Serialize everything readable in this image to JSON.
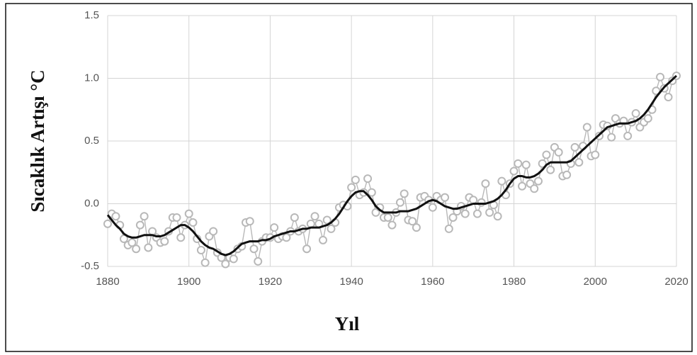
{
  "chart_data": {
    "type": "line",
    "xlabel": "Yıl",
    "ylabel": "Sıcaklık Artışı °C",
    "x": [
      1880,
      1881,
      1882,
      1883,
      1884,
      1885,
      1886,
      1887,
      1888,
      1889,
      1890,
      1891,
      1892,
      1893,
      1894,
      1895,
      1896,
      1897,
      1898,
      1899,
      1900,
      1901,
      1902,
      1903,
      1904,
      1905,
      1906,
      1907,
      1908,
      1909,
      1910,
      1911,
      1912,
      1913,
      1914,
      1915,
      1916,
      1917,
      1918,
      1919,
      1920,
      1921,
      1922,
      1923,
      1924,
      1925,
      1926,
      1927,
      1928,
      1929,
      1930,
      1931,
      1932,
      1933,
      1934,
      1935,
      1936,
      1937,
      1938,
      1939,
      1940,
      1941,
      1942,
      1943,
      1944,
      1945,
      1946,
      1947,
      1948,
      1949,
      1950,
      1951,
      1952,
      1953,
      1954,
      1955,
      1956,
      1957,
      1958,
      1959,
      1960,
      1961,
      1962,
      1963,
      1964,
      1965,
      1966,
      1967,
      1968,
      1969,
      1970,
      1971,
      1972,
      1973,
      1974,
      1975,
      1976,
      1977,
      1978,
      1979,
      1980,
      1981,
      1982,
      1983,
      1984,
      1985,
      1986,
      1987,
      1988,
      1989,
      1990,
      1991,
      1992,
      1993,
      1994,
      1995,
      1996,
      1997,
      1998,
      1999,
      2000,
      2001,
      2002,
      2003,
      2004,
      2005,
      2006,
      2007,
      2008,
      2009,
      2010,
      2011,
      2012,
      2013,
      2014,
      2015,
      2016,
      2017,
      2018,
      2019,
      2020
    ],
    "series": [
      {
        "color": "#b8b8b8",
        "marker": "circle",
        "values": [
          -0.16,
          -0.08,
          -0.1,
          -0.17,
          -0.28,
          -0.33,
          -0.31,
          -0.36,
          -0.17,
          -0.1,
          -0.35,
          -0.22,
          -0.27,
          -0.31,
          -0.3,
          -0.22,
          -0.11,
          -0.11,
          -0.27,
          -0.17,
          -0.08,
          -0.15,
          -0.28,
          -0.37,
          -0.47,
          -0.26,
          -0.22,
          -0.39,
          -0.43,
          -0.48,
          -0.43,
          -0.44,
          -0.36,
          -0.34,
          -0.15,
          -0.14,
          -0.36,
          -0.46,
          -0.3,
          -0.27,
          -0.27,
          -0.19,
          -0.28,
          -0.26,
          -0.27,
          -0.22,
          -0.11,
          -0.22,
          -0.2,
          -0.36,
          -0.16,
          -0.1,
          -0.16,
          -0.29,
          -0.13,
          -0.2,
          -0.15,
          -0.03,
          -0.01,
          -0.02,
          0.13,
          0.19,
          0.07,
          0.09,
          0.2,
          0.09,
          -0.07,
          -0.03,
          -0.11,
          -0.11,
          -0.17,
          -0.07,
          0.01,
          0.08,
          -0.13,
          -0.14,
          -0.19,
          0.05,
          0.06,
          0.03,
          -0.03,
          0.06,
          0.03,
          0.05,
          -0.2,
          -0.11,
          -0.06,
          -0.02,
          -0.08,
          0.05,
          0.03,
          -0.08,
          0.01,
          0.16,
          -0.07,
          -0.01,
          -0.1,
          0.18,
          0.07,
          0.16,
          0.26,
          0.32,
          0.14,
          0.31,
          0.16,
          0.12,
          0.18,
          0.32,
          0.39,
          0.27,
          0.45,
          0.41,
          0.22,
          0.23,
          0.32,
          0.45,
          0.33,
          0.46,
          0.61,
          0.38,
          0.39,
          0.54,
          0.63,
          0.62,
          0.53,
          0.68,
          0.64,
          0.66,
          0.54,
          0.65,
          0.72,
          0.61,
          0.65,
          0.68,
          0.75,
          0.9,
          1.01,
          0.92,
          0.85,
          0.98,
          1.02
        ]
      },
      {
        "color": "#111111",
        "marker": "none",
        "values": [
          -0.09,
          -0.13,
          -0.17,
          -0.2,
          -0.24,
          -0.26,
          -0.27,
          -0.27,
          -0.26,
          -0.25,
          -0.25,
          -0.25,
          -0.26,
          -0.26,
          -0.25,
          -0.23,
          -0.21,
          -0.19,
          -0.17,
          -0.17,
          -0.19,
          -0.22,
          -0.26,
          -0.3,
          -0.33,
          -0.35,
          -0.36,
          -0.38,
          -0.4,
          -0.41,
          -0.4,
          -0.38,
          -0.35,
          -0.32,
          -0.31,
          -0.3,
          -0.3,
          -0.3,
          -0.29,
          -0.29,
          -0.28,
          -0.26,
          -0.25,
          -0.24,
          -0.23,
          -0.22,
          -0.22,
          -0.21,
          -0.2,
          -0.2,
          -0.19,
          -0.19,
          -0.19,
          -0.18,
          -0.17,
          -0.15,
          -0.12,
          -0.08,
          -0.03,
          0.02,
          0.06,
          0.09,
          0.1,
          0.1,
          0.07,
          0.03,
          -0.02,
          -0.05,
          -0.07,
          -0.07,
          -0.07,
          -0.07,
          -0.06,
          -0.06,
          -0.06,
          -0.05,
          -0.04,
          -0.02,
          0.0,
          0.02,
          0.03,
          0.02,
          0.0,
          -0.02,
          -0.03,
          -0.04,
          -0.04,
          -0.03,
          -0.02,
          -0.01,
          0.0,
          0.0,
          0.0,
          0.0,
          0.01,
          0.02,
          0.04,
          0.07,
          0.11,
          0.16,
          0.2,
          0.22,
          0.22,
          0.21,
          0.21,
          0.22,
          0.24,
          0.27,
          0.31,
          0.33,
          0.33,
          0.33,
          0.33,
          0.33,
          0.34,
          0.37,
          0.4,
          0.43,
          0.46,
          0.49,
          0.52,
          0.55,
          0.58,
          0.61,
          0.62,
          0.63,
          0.64,
          0.64,
          0.64,
          0.65,
          0.66,
          0.68,
          0.71,
          0.75,
          0.8,
          0.85,
          0.89,
          0.93,
          0.96,
          0.99,
          1.02
        ]
      }
    ],
    "xlim": [
      1880,
      2020
    ],
    "xticks": [
      1880,
      1900,
      1920,
      1940,
      1960,
      1980,
      2000,
      2020
    ],
    "ylim": [
      -0.5,
      1.5
    ],
    "yticks": [
      -0.5,
      {
        "value": 0,
        "label": "0.0"
      },
      0.5,
      {
        "value": 1,
        "label": "1.0"
      },
      1.5
    ],
    "grid": true
  }
}
